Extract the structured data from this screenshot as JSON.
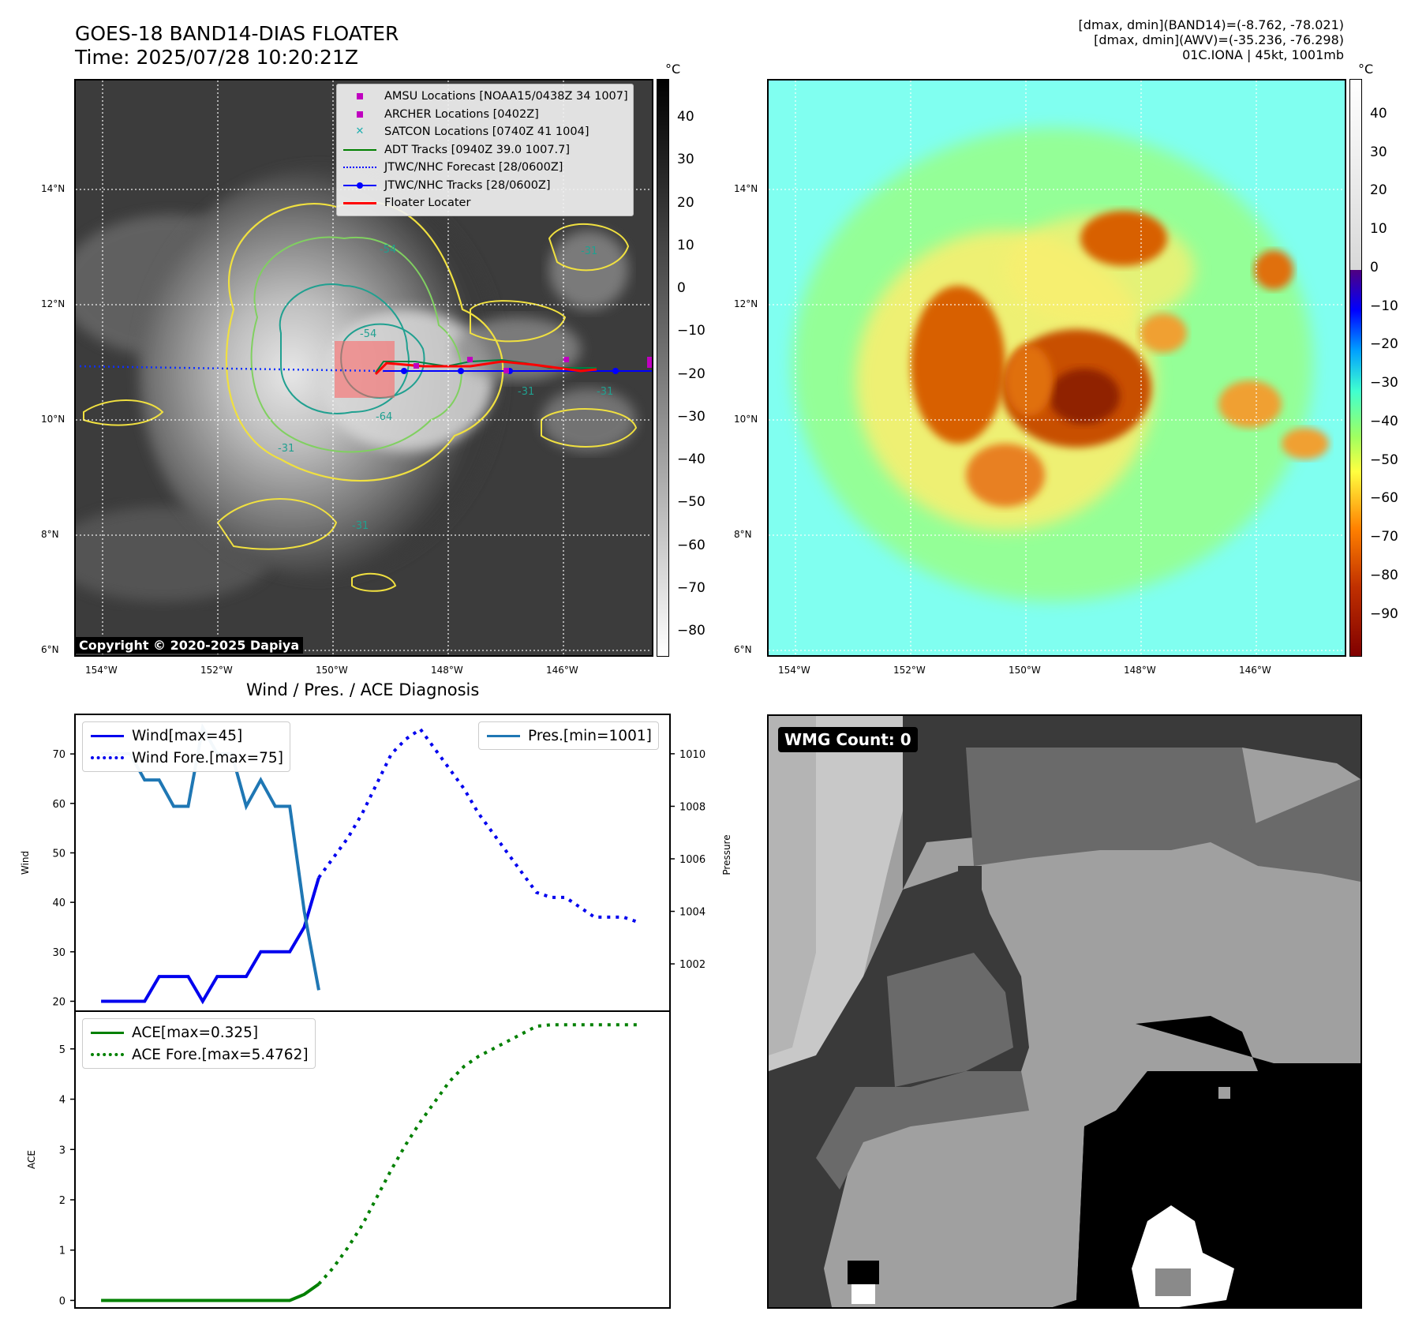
{
  "header": {
    "title_line1": "GOES-18 BAND14-DIAS FLOATER",
    "title_line2": "Time: 2025/07/28 10:20:21Z",
    "info_line1": "[dmax, dmin](BAND14)=(-8.762, -78.021)",
    "info_line2": "[dmax, dmin](AWV)=(-35.236, -76.298)",
    "info_line3": "01C.IONA | 45kt, 1001mb"
  },
  "map_axes": {
    "lat_ticks": [
      "14°N",
      "12°N",
      "10°N",
      "8°N",
      "6°N"
    ],
    "lon_ticks": [
      "154°W",
      "152°W",
      "150°W",
      "148°W",
      "146°W"
    ]
  },
  "ir_colorbar": {
    "unit": "°C",
    "ticks": [
      "40",
      "30",
      "20",
      "10",
      "0",
      "−10",
      "−20",
      "−30",
      "−40",
      "−50",
      "−60",
      "−70",
      "−80"
    ]
  },
  "awv_colorbar": {
    "unit": "°C",
    "ticks": [
      "40",
      "30",
      "20",
      "10",
      "0",
      "−10",
      "−20",
      "−30",
      "−40",
      "−50",
      "−60",
      "−70",
      "−80",
      "−90"
    ]
  },
  "map_legend": [
    {
      "label": "AMSU Locations [NOAA15/0438Z 34 1007]",
      "symbol": "square",
      "color": "#c000c0"
    },
    {
      "label": "ARCHER Locations [0402Z]",
      "symbol": "square",
      "color": "#c000c0"
    },
    {
      "label": "SATCON Locations [0740Z 41 1004]",
      "symbol": "x",
      "color": "#20b0b0"
    },
    {
      "label": "ADT Tracks [0940Z 39.0 1007.7]",
      "symbol": "line",
      "color": "#008000"
    },
    {
      "label": "JTWC/NHC Forecast [28/0600Z]",
      "symbol": "dotted",
      "color": "#0000ff"
    },
    {
      "label": "JTWC/NHC Tracks [28/0600Z]",
      "symbol": "line-dot",
      "color": "#0000ff"
    },
    {
      "label": "Floater Locater",
      "symbol": "line",
      "color": "#ff0000"
    }
  ],
  "contour_labels": [
    "-54",
    "-31",
    "-54",
    "-31",
    "-64",
    "-31",
    "-31",
    "-31"
  ],
  "copyright": "Copyright © 2020-2025 Dapiya",
  "diagnosis_title": "Wind / Pres. / ACE Diagnosis",
  "wmg_label": "WMG Count: 0",
  "chart_data": [
    {
      "type": "line",
      "title": "Wind / Pres. / ACE Diagnosis",
      "ylabel": "Wind",
      "ylabel_right": "Pressure",
      "ylim": [
        18,
        78
      ],
      "ylim_right": [
        1000.2,
        1011.5
      ],
      "yticks": [
        "20",
        "30",
        "40",
        "50",
        "60",
        "70"
      ],
      "yticks_right": [
        "1002",
        "1004",
        "1006",
        "1008",
        "1010"
      ],
      "x": [
        0,
        1,
        2,
        3,
        4,
        5,
        6,
        7,
        8,
        9,
        10,
        11,
        12,
        13,
        14,
        15,
        16,
        17,
        18,
        19,
        20,
        21,
        22,
        23,
        24,
        25,
        26,
        27,
        28,
        29,
        30,
        31,
        32,
        33,
        34,
        35,
        36,
        37
      ],
      "series": [
        {
          "name": "Wind[max=45]",
          "axis": "left",
          "style": "solid",
          "color": "#0000ee",
          "x": [
            0,
            1,
            2,
            3,
            4,
            5,
            6,
            7,
            8,
            9,
            10,
            11,
            12,
            13,
            14,
            15
          ],
          "values": [
            20,
            20,
            20,
            20,
            25,
            25,
            25,
            20,
            25,
            25,
            25,
            30,
            30,
            30,
            35,
            45
          ]
        },
        {
          "name": "Wind Fore.[max=75]",
          "axis": "left",
          "style": "dotted",
          "color": "#0000ee",
          "x": [
            15,
            16,
            17,
            18,
            19,
            20,
            21,
            22,
            23,
            24,
            25,
            26,
            27,
            28,
            29,
            30,
            31,
            32,
            33,
            34,
            35,
            36,
            37
          ],
          "values": [
            45,
            49,
            53,
            58,
            64,
            70,
            73,
            75,
            71,
            67,
            63,
            58,
            54,
            50,
            46,
            42,
            41,
            41,
            39,
            37,
            37,
            37,
            36
          ]
        },
        {
          "name": "Pres.[min=1001]",
          "axis": "right",
          "style": "solid",
          "color": "#1f77b4",
          "x": [
            0,
            1,
            2,
            3,
            4,
            5,
            6,
            7,
            8,
            9,
            10,
            11,
            12,
            13,
            14,
            15
          ],
          "values": [
            1010,
            1010,
            1010,
            1009,
            1009,
            1008,
            1008,
            1011,
            1010,
            1010,
            1008,
            1009,
            1008,
            1008,
            1004,
            1001
          ]
        }
      ]
    },
    {
      "type": "line",
      "ylabel": "ACE",
      "ylim": [
        -0.15,
        5.75
      ],
      "yticks": [
        "0",
        "1",
        "2",
        "3",
        "4",
        "5"
      ],
      "series": [
        {
          "name": "ACE[max=0.325]",
          "style": "solid",
          "color": "#008000",
          "x": [
            0,
            1,
            2,
            3,
            4,
            5,
            6,
            7,
            8,
            9,
            10,
            11,
            12,
            13,
            14,
            15
          ],
          "values": [
            0,
            0,
            0,
            0,
            0,
            0,
            0,
            0,
            0,
            0,
            0,
            0,
            0,
            0,
            0.12,
            0.325
          ]
        },
        {
          "name": "ACE Fore.[max=5.4762]",
          "style": "dotted",
          "color": "#008000",
          "x": [
            15,
            16,
            17,
            18,
            19,
            20,
            21,
            22,
            23,
            24,
            25,
            26,
            27,
            28,
            29,
            30,
            31,
            32,
            33,
            34,
            35,
            36,
            37
          ],
          "values": [
            0.325,
            0.65,
            1.05,
            1.5,
            2.05,
            2.6,
            3.1,
            3.55,
            3.95,
            4.35,
            4.65,
            4.85,
            5.0,
            5.15,
            5.3,
            5.45,
            5.48,
            5.48,
            5.48,
            5.48,
            5.48,
            5.48,
            5.48
          ]
        }
      ]
    }
  ]
}
